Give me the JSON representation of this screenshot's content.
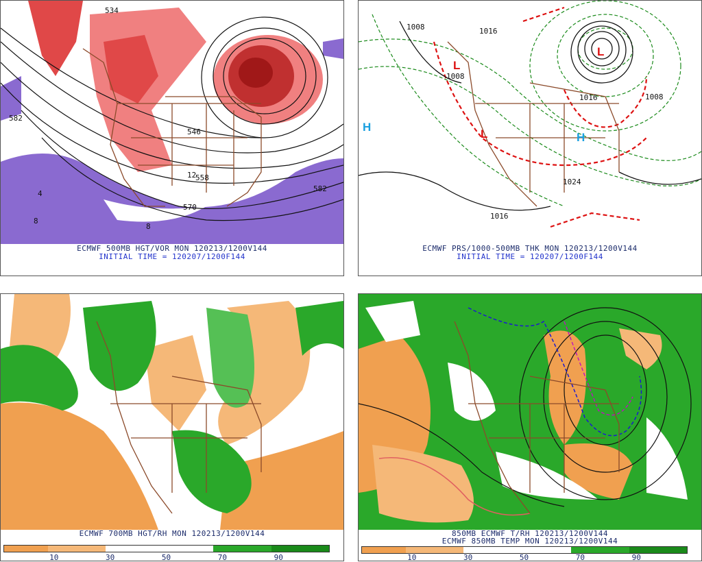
{
  "panels": [
    {
      "id": "p1",
      "caption_line1": "ECMWF 500MB HGT/VOR MON 120213/1200V144",
      "caption_line2": "INITIAL TIME = 120207/1200F144",
      "contour_labels": [
        "534",
        "582",
        "546",
        "558",
        "570",
        "582",
        "4",
        "8",
        "12",
        "8"
      ]
    },
    {
      "id": "p2",
      "caption_line1": "ECMWF PRS/1000-500MB THK MON 120213/1200V144",
      "caption_line2": "INITIAL TIME = 120207/1200F144",
      "pressure_labels": [
        "1008",
        "1016",
        "1008",
        "1016",
        "1008",
        "1024",
        "1016"
      ],
      "centers": [
        "H",
        "L",
        "L",
        "L",
        "H"
      ]
    },
    {
      "id": "p3",
      "caption_line1": "ECMWF 700MB HGT/RH MON 120213/1200V144",
      "colorbar_labels": [
        "10",
        "30",
        "50",
        "70",
        "90"
      ]
    },
    {
      "id": "p4",
      "caption_line1": "850MB ECMWF T/RH 120213/1200V144",
      "caption_line2": "ECMWF 850MB TEMP MON 120213/1200V144",
      "colorbar_labels": [
        "10",
        "30",
        "50",
        "70",
        "90"
      ]
    }
  ],
  "colors": {
    "orange": "#f0a050",
    "orange_light": "#f5b878",
    "green": "#2aa82a",
    "green_light": "#55c055",
    "green_dark": "#1a8a1a",
    "purple": "#8a6ad0",
    "red_vort": "#e04848",
    "red_vort_light": "#f08080",
    "red_dark": "#b01818",
    "border": "#8b4a2a",
    "caption_blue": "#2233cc"
  }
}
